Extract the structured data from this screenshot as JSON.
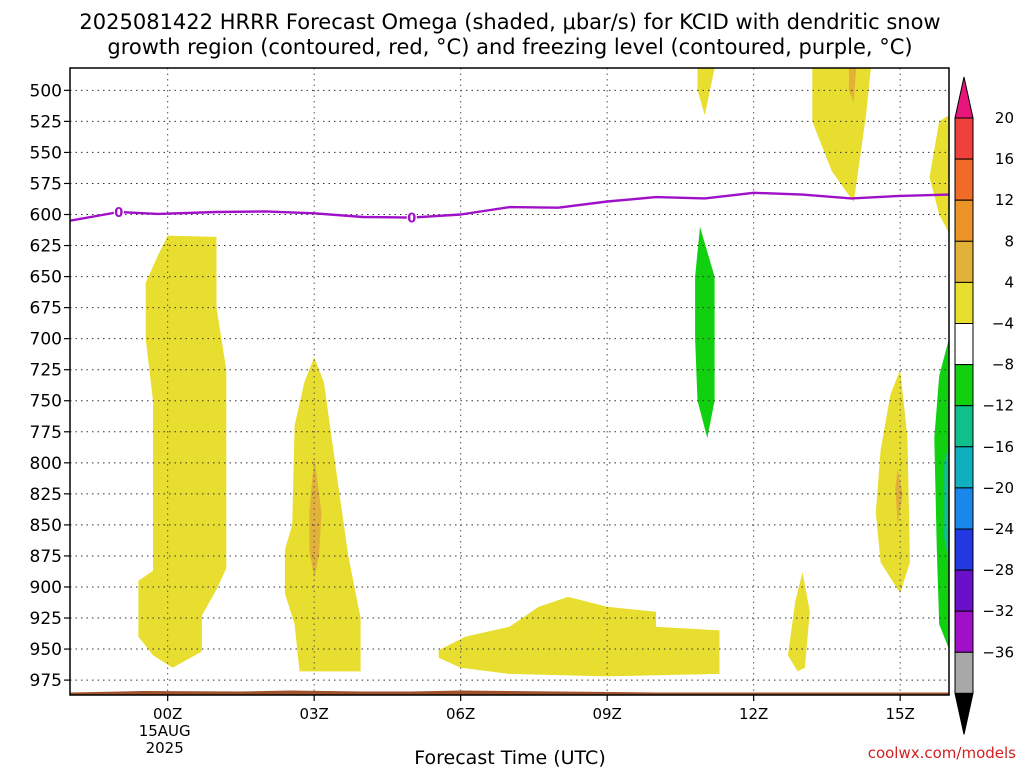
{
  "title_line1": "2025081422 HRRR Forecast Omega (shaded, μbar/s) for KCID with dendritic snow",
  "title_line2": "growth region (contoured, red, °C) and freezing level (contoured, purple, °C)",
  "credit": "coolwx.com/models",
  "chart_data": {
    "type": "area",
    "title": "2025081422 HRRR Forecast Omega (shaded, μbar/s) for KCID with dendritic snow growth region (contoured, red, °C) and freezing level (contoured, purple, °C)",
    "xlabel": "Forecast Time (UTC)",
    "ylabel": "",
    "x_range_hours_from_00Z": [
      -2,
      16
    ],
    "y_range_hPa": [
      482,
      987
    ],
    "y_axis": "pressure, inverted",
    "grid": true,
    "x_ticks": [
      {
        "hour": 0,
        "label": "00Z",
        "sub1": "15AUG",
        "sub2": "2025"
      },
      {
        "hour": 3,
        "label": "03Z",
        "sub1": "",
        "sub2": ""
      },
      {
        "hour": 6,
        "label": "06Z",
        "sub1": "",
        "sub2": ""
      },
      {
        "hour": 9,
        "label": "09Z",
        "sub1": "",
        "sub2": ""
      },
      {
        "hour": 12,
        "label": "12Z",
        "sub1": "",
        "sub2": ""
      },
      {
        "hour": 15,
        "label": "15Z",
        "sub1": "",
        "sub2": ""
      }
    ],
    "y_ticks": [
      500,
      525,
      550,
      575,
      600,
      625,
      650,
      675,
      700,
      725,
      750,
      775,
      800,
      825,
      850,
      875,
      900,
      925,
      950,
      975
    ],
    "colorbar": {
      "labels": [
        "20",
        "16",
        "12",
        "8",
        "4",
        "−4",
        "−8",
        "−12",
        "−16",
        "−20",
        "−24",
        "−28",
        "−32",
        "−36"
      ],
      "colors": [
        "#e8157a",
        "#f0403c",
        "#f06a28",
        "#ec9428",
        "#e2b238",
        "#e8de30",
        "#ffffff",
        "#10d010",
        "#10c08a",
        "#10b0c0",
        "#1a88ea",
        "#2238e0",
        "#6a10c8",
        "#a010c8",
        "#a8a8a8",
        "#000000"
      ]
    },
    "freezing_level": {
      "label": "0",
      "color": "#a010c8",
      "points": [
        [
          -2,
          605
        ],
        [
          -1.0,
          598
        ],
        [
          -0.2,
          599.5
        ],
        [
          1,
          598
        ],
        [
          2,
          597.5
        ],
        [
          3,
          599
        ],
        [
          4,
          602
        ],
        [
          5,
          602.5
        ],
        [
          6,
          600
        ],
        [
          7,
          594
        ],
        [
          8,
          594.5
        ],
        [
          9,
          589.5
        ],
        [
          10,
          586
        ],
        [
          11,
          587
        ],
        [
          12,
          582.5
        ],
        [
          13,
          584
        ],
        [
          14,
          587
        ],
        [
          15,
          585
        ],
        [
          16,
          584
        ]
      ],
      "labels_at_hours": [
        -1.0,
        5.0
      ]
    },
    "omega_regions": [
      {
        "level": "4 to 8",
        "color": "#e8de30",
        "points": [
          [
            -0.6,
            931
          ],
          [
            -0.6,
            895
          ],
          [
            -0.3,
            887
          ],
          [
            -0.3,
            750
          ],
          [
            -0.45,
            700
          ],
          [
            -0.45,
            655
          ],
          [
            -0.2,
            633
          ],
          [
            0,
            617
          ],
          [
            1,
            618
          ],
          [
            1,
            675
          ],
          [
            1.2,
            725
          ],
          [
            1.2,
            885
          ],
          [
            1.0,
            902
          ],
          [
            0.7,
            923
          ],
          [
            0.7,
            952
          ],
          [
            0.1,
            965
          ],
          [
            -0.3,
            955
          ],
          [
            -0.6,
            940
          ]
        ]
      },
      {
        "level": "4 to 8",
        "color": "#e8de30",
        "points": [
          [
            2.4,
            870
          ],
          [
            2.55,
            850
          ],
          [
            2.6,
            770
          ],
          [
            2.8,
            735
          ],
          [
            3.0,
            715
          ],
          [
            3.2,
            735
          ],
          [
            3.5,
            820
          ],
          [
            3.7,
            875
          ],
          [
            3.95,
            925
          ],
          [
            3.95,
            968
          ],
          [
            2.7,
            968
          ],
          [
            2.6,
            930
          ],
          [
            2.4,
            905
          ]
        ]
      },
      {
        "level": "8 to 12",
        "color": "#e2b238",
        "points": [
          [
            2.9,
            840
          ],
          [
            3.0,
            795
          ],
          [
            3.15,
            840
          ],
          [
            3.1,
            875
          ],
          [
            3.0,
            893
          ],
          [
            2.9,
            870
          ]
        ]
      },
      {
        "level": "4 to 8",
        "color": "#e8de30",
        "points": [
          [
            5.55,
            951
          ],
          [
            6.1,
            940
          ],
          [
            7.0,
            932
          ],
          [
            7.6,
            916
          ],
          [
            8.2,
            908
          ],
          [
            9.0,
            916
          ],
          [
            10.0,
            920
          ],
          [
            10.0,
            932
          ],
          [
            11.3,
            935
          ],
          [
            11.3,
            970
          ],
          [
            9.0,
            972
          ],
          [
            7.0,
            970
          ],
          [
            6.0,
            965
          ],
          [
            5.55,
            957
          ]
        ]
      },
      {
        "level": "4 to 8",
        "color": "#e8de30",
        "points": [
          [
            10.85,
            482
          ],
          [
            11.2,
            482
          ],
          [
            11.0,
            520
          ],
          [
            10.85,
            500
          ]
        ]
      },
      {
        "level": "4 to 8",
        "color": "#e8de30",
        "points": [
          [
            13.2,
            482
          ],
          [
            14.4,
            482
          ],
          [
            14.3,
            520
          ],
          [
            14.05,
            590
          ],
          [
            13.6,
            565
          ],
          [
            13.2,
            525
          ]
        ]
      },
      {
        "level": "8 to 12",
        "color": "#e2b238",
        "points": [
          [
            13.95,
            482
          ],
          [
            14.1,
            482
          ],
          [
            14.05,
            510
          ],
          [
            13.95,
            500
          ]
        ]
      },
      {
        "level": "4 to 8",
        "color": "#e8de30",
        "points": [
          [
            12.7,
            955
          ],
          [
            12.85,
            912
          ],
          [
            13.0,
            888
          ],
          [
            13.15,
            920
          ],
          [
            13.05,
            965
          ],
          [
            12.9,
            968
          ]
        ]
      },
      {
        "level": "4 to 8",
        "color": "#e8de30",
        "points": [
          [
            14.5,
            840
          ],
          [
            14.6,
            790
          ],
          [
            14.8,
            745
          ],
          [
            15.0,
            725
          ],
          [
            15.15,
            780
          ],
          [
            15.2,
            880
          ],
          [
            15.0,
            905
          ],
          [
            14.6,
            880
          ]
        ]
      },
      {
        "level": "8 to 12",
        "color": "#e2b238",
        "points": [
          [
            14.9,
            820
          ],
          [
            14.95,
            805
          ],
          [
            15.05,
            825
          ],
          [
            14.95,
            850
          ]
        ]
      },
      {
        "level": "4 to 8",
        "color": "#e8de30",
        "points": [
          [
            16.0,
            520
          ],
          [
            15.8,
            525
          ],
          [
            15.6,
            570
          ],
          [
            15.8,
            600
          ],
          [
            16.0,
            615
          ]
        ]
      },
      {
        "level": "-4 to -8",
        "color": "#10d010",
        "points": [
          [
            10.9,
            610
          ],
          [
            11.2,
            650
          ],
          [
            11.2,
            750
          ],
          [
            11.05,
            780
          ],
          [
            10.85,
            750
          ],
          [
            10.8,
            700
          ],
          [
            10.8,
            650
          ]
        ]
      },
      {
        "level": "-4 to -8",
        "color": "#10d010",
        "points": [
          [
            16.0,
            700
          ],
          [
            15.8,
            730
          ],
          [
            15.7,
            780
          ],
          [
            15.75,
            870
          ],
          [
            15.8,
            930
          ],
          [
            16.0,
            950
          ]
        ]
      },
      {
        "level": "-8 to -12",
        "color": "#10c08a",
        "points": [
          [
            16.0,
            785
          ],
          [
            15.9,
            800
          ],
          [
            15.9,
            860
          ],
          [
            16.0,
            880
          ]
        ]
      }
    ],
    "terrain": {
      "color": "#a0522d",
      "surface_hPa": 985
    }
  }
}
